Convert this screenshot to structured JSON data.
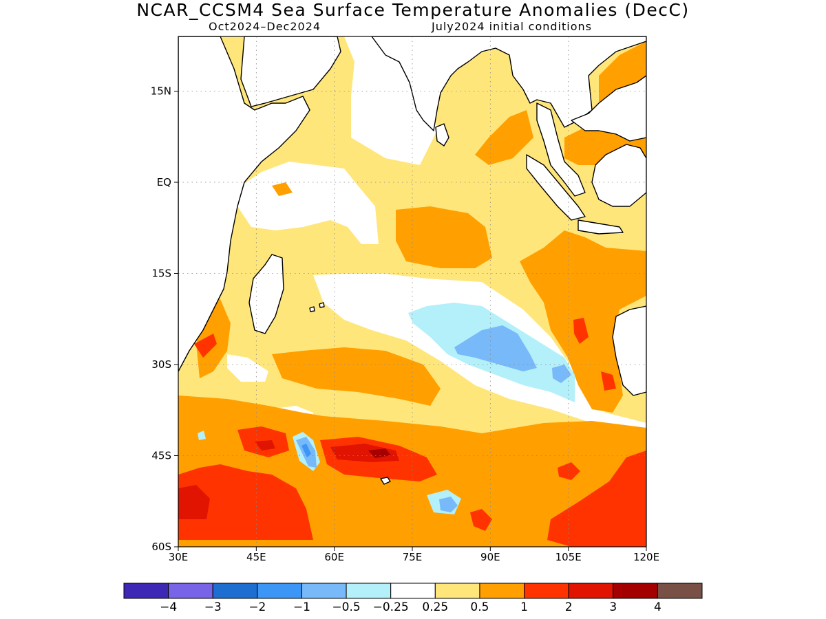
{
  "title": "NCAR_CCSM4 Sea Surface Temperature Anomalies (DecC)",
  "subtitle_left": "Oct2024–Dec2024",
  "subtitle_right": "July2024 initial conditions",
  "map": {
    "lon_range": [
      30,
      120
    ],
    "lat_range": [
      -60,
      24
    ],
    "lat_ticks": [
      {
        "value": 15,
        "label": "15N"
      },
      {
        "value": 0,
        "label": "EQ"
      },
      {
        "value": -15,
        "label": "15S"
      },
      {
        "value": -30,
        "label": "30S"
      },
      {
        "value": -45,
        "label": "45S"
      },
      {
        "value": -60,
        "label": "60S"
      }
    ],
    "lon_ticks": [
      {
        "value": 30,
        "label": "30E"
      },
      {
        "value": 45,
        "label": "45E"
      },
      {
        "value": 60,
        "label": "60E"
      },
      {
        "value": 75,
        "label": "75E"
      },
      {
        "value": 90,
        "label": "90E"
      },
      {
        "value": 105,
        "label": "105E"
      },
      {
        "value": 120,
        "label": "120E"
      }
    ],
    "grid": true,
    "colors": {
      "light_yellow": "#ffe67a",
      "orange": "#ffa000",
      "red_orange": "#ff3300",
      "red": "#e01400",
      "dark_red": "#a50000",
      "pale_blue": "#b4f0fa",
      "light_blue": "#78b9fa",
      "blue": "#3c96f5",
      "land": "#ffffff",
      "ocean_neutral": "#ffffff"
    }
  },
  "colorbar": {
    "colors": [
      "#3c28b4",
      "#7864e6",
      "#1e6ed2",
      "#3c96f5",
      "#78b9fa",
      "#b4f0fa",
      "#ffffff",
      "#ffe67a",
      "#ffa000",
      "#ff3300",
      "#e01400",
      "#a50000",
      "#785046"
    ],
    "labels": [
      "−4",
      "−3",
      "−2",
      "−1",
      "−0.5",
      "−0.25",
      "0.25",
      "0.5",
      "1",
      "2",
      "3",
      "4"
    ]
  }
}
